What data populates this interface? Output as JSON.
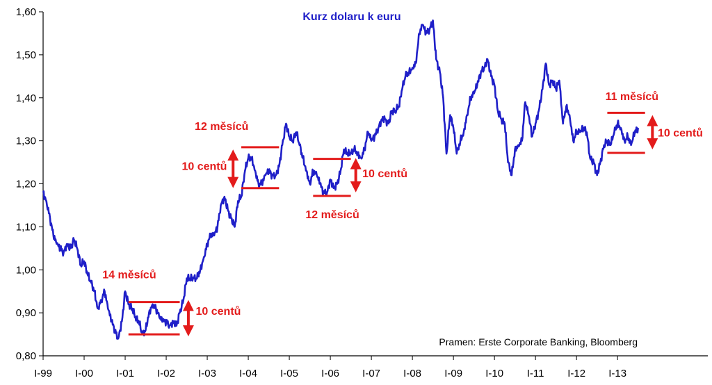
{
  "chart_data": {
    "type": "line",
    "title": "Kurz dolaru k euru",
    "source": "Pramen: Erste Corporate Banking, Bloomberg",
    "ylim": [
      0.8,
      1.6
    ],
    "xlim": [
      1999.0,
      2013.7
    ],
    "grid": false,
    "y_ticks": [
      {
        "value": 0.8,
        "label": "0,80"
      },
      {
        "value": 0.9,
        "label": "0,90"
      },
      {
        "value": 1.0,
        "label": "1,00"
      },
      {
        "value": 1.1,
        "label": "1,10"
      },
      {
        "value": 1.2,
        "label": "1,20"
      },
      {
        "value": 1.3,
        "label": "1,30"
      },
      {
        "value": 1.4,
        "label": "1,40"
      },
      {
        "value": 1.5,
        "label": "1,50"
      },
      {
        "value": 1.6,
        "label": "1,60"
      }
    ],
    "x_ticks": [
      {
        "value": 1999,
        "label": "I-99"
      },
      {
        "value": 2000,
        "label": "I-00"
      },
      {
        "value": 2001,
        "label": "I-01"
      },
      {
        "value": 2002,
        "label": "I-02"
      },
      {
        "value": 2003,
        "label": "I-03"
      },
      {
        "value": 2004,
        "label": "I-04"
      },
      {
        "value": 2005,
        "label": "I-05"
      },
      {
        "value": 2006,
        "label": "I-06"
      },
      {
        "value": 2007,
        "label": "I-07"
      },
      {
        "value": 2008,
        "label": "I-08"
      },
      {
        "value": 2009,
        "label": "I-09"
      },
      {
        "value": 2010,
        "label": "I-10"
      },
      {
        "value": 2011,
        "label": "I-11"
      },
      {
        "value": 2012,
        "label": "I-12"
      },
      {
        "value": 2013,
        "label": "I-13"
      }
    ],
    "series": [
      {
        "color": "#1f1fc8",
        "points": [
          [
            1999.0,
            1.18
          ],
          [
            1999.08,
            1.16
          ],
          [
            1999.17,
            1.12
          ],
          [
            1999.25,
            1.08
          ],
          [
            1999.33,
            1.06
          ],
          [
            1999.42,
            1.05
          ],
          [
            1999.5,
            1.04
          ],
          [
            1999.58,
            1.06
          ],
          [
            1999.67,
            1.05
          ],
          [
            1999.75,
            1.07
          ],
          [
            1999.83,
            1.05
          ],
          [
            1999.92,
            1.01
          ],
          [
            2000.0,
            1.02
          ],
          [
            2000.08,
            0.99
          ],
          [
            2000.17,
            0.97
          ],
          [
            2000.25,
            0.95
          ],
          [
            2000.33,
            0.91
          ],
          [
            2000.42,
            0.93
          ],
          [
            2000.5,
            0.95
          ],
          [
            2000.58,
            0.91
          ],
          [
            2000.67,
            0.88
          ],
          [
            2000.75,
            0.86
          ],
          [
            2000.83,
            0.84
          ],
          [
            2000.92,
            0.88
          ],
          [
            2001.0,
            0.95
          ],
          [
            2001.08,
            0.92
          ],
          [
            2001.17,
            0.91
          ],
          [
            2001.25,
            0.89
          ],
          [
            2001.33,
            0.88
          ],
          [
            2001.42,
            0.85
          ],
          [
            2001.5,
            0.86
          ],
          [
            2001.58,
            0.9
          ],
          [
            2001.67,
            0.92
          ],
          [
            2001.75,
            0.91
          ],
          [
            2001.83,
            0.89
          ],
          [
            2001.92,
            0.88
          ],
          [
            2002.0,
            0.88
          ],
          [
            2002.08,
            0.87
          ],
          [
            2002.17,
            0.88
          ],
          [
            2002.25,
            0.87
          ],
          [
            2002.33,
            0.9
          ],
          [
            2002.42,
            0.93
          ],
          [
            2002.5,
            0.98
          ],
          [
            2002.58,
            0.98
          ],
          [
            2002.67,
            0.98
          ],
          [
            2002.75,
            0.98
          ],
          [
            2002.83,
            1.0
          ],
          [
            2002.92,
            1.03
          ],
          [
            2003.0,
            1.06
          ],
          [
            2003.08,
            1.08
          ],
          [
            2003.17,
            1.08
          ],
          [
            2003.25,
            1.1
          ],
          [
            2003.33,
            1.15
          ],
          [
            2003.42,
            1.17
          ],
          [
            2003.5,
            1.14
          ],
          [
            2003.58,
            1.12
          ],
          [
            2003.67,
            1.1
          ],
          [
            2003.75,
            1.16
          ],
          [
            2003.83,
            1.17
          ],
          [
            2003.92,
            1.23
          ],
          [
            2004.0,
            1.26
          ],
          [
            2004.08,
            1.26
          ],
          [
            2004.17,
            1.23
          ],
          [
            2004.25,
            1.2
          ],
          [
            2004.33,
            1.2
          ],
          [
            2004.42,
            1.22
          ],
          [
            2004.5,
            1.23
          ],
          [
            2004.58,
            1.22
          ],
          [
            2004.67,
            1.22
          ],
          [
            2004.75,
            1.24
          ],
          [
            2004.83,
            1.29
          ],
          [
            2004.92,
            1.34
          ],
          [
            2005.0,
            1.31
          ],
          [
            2005.08,
            1.3
          ],
          [
            2005.17,
            1.32
          ],
          [
            2005.25,
            1.29
          ],
          [
            2005.33,
            1.26
          ],
          [
            2005.42,
            1.23
          ],
          [
            2005.5,
            1.2
          ],
          [
            2005.58,
            1.23
          ],
          [
            2005.67,
            1.22
          ],
          [
            2005.75,
            1.2
          ],
          [
            2005.83,
            1.18
          ],
          [
            2005.92,
            1.18
          ],
          [
            2006.0,
            1.21
          ],
          [
            2006.08,
            1.19
          ],
          [
            2006.17,
            1.2
          ],
          [
            2006.25,
            1.23
          ],
          [
            2006.33,
            1.28
          ],
          [
            2006.42,
            1.27
          ],
          [
            2006.5,
            1.27
          ],
          [
            2006.58,
            1.28
          ],
          [
            2006.67,
            1.27
          ],
          [
            2006.75,
            1.26
          ],
          [
            2006.83,
            1.28
          ],
          [
            2006.92,
            1.32
          ],
          [
            2007.0,
            1.3
          ],
          [
            2007.08,
            1.31
          ],
          [
            2007.17,
            1.33
          ],
          [
            2007.25,
            1.35
          ],
          [
            2007.33,
            1.35
          ],
          [
            2007.42,
            1.34
          ],
          [
            2007.5,
            1.37
          ],
          [
            2007.58,
            1.37
          ],
          [
            2007.67,
            1.38
          ],
          [
            2007.75,
            1.42
          ],
          [
            2007.83,
            1.45
          ],
          [
            2007.92,
            1.46
          ],
          [
            2008.0,
            1.47
          ],
          [
            2008.08,
            1.48
          ],
          [
            2008.17,
            1.55
          ],
          [
            2008.25,
            1.57
          ],
          [
            2008.33,
            1.55
          ],
          [
            2008.42,
            1.56
          ],
          [
            2008.5,
            1.58
          ],
          [
            2008.58,
            1.49
          ],
          [
            2008.67,
            1.46
          ],
          [
            2008.75,
            1.4
          ],
          [
            2008.83,
            1.27
          ],
          [
            2008.92,
            1.36
          ],
          [
            2009.0,
            1.33
          ],
          [
            2009.08,
            1.27
          ],
          [
            2009.17,
            1.3
          ],
          [
            2009.25,
            1.32
          ],
          [
            2009.33,
            1.36
          ],
          [
            2009.42,
            1.4
          ],
          [
            2009.5,
            1.41
          ],
          [
            2009.58,
            1.43
          ],
          [
            2009.67,
            1.46
          ],
          [
            2009.75,
            1.47
          ],
          [
            2009.83,
            1.49
          ],
          [
            2009.92,
            1.45
          ],
          [
            2010.0,
            1.43
          ],
          [
            2010.08,
            1.37
          ],
          [
            2010.17,
            1.35
          ],
          [
            2010.25,
            1.34
          ],
          [
            2010.33,
            1.25
          ],
          [
            2010.42,
            1.22
          ],
          [
            2010.5,
            1.28
          ],
          [
            2010.58,
            1.29
          ],
          [
            2010.67,
            1.3
          ],
          [
            2010.75,
            1.39
          ],
          [
            2010.83,
            1.36
          ],
          [
            2010.92,
            1.31
          ],
          [
            2011.0,
            1.34
          ],
          [
            2011.08,
            1.37
          ],
          [
            2011.17,
            1.42
          ],
          [
            2011.25,
            1.48
          ],
          [
            2011.33,
            1.43
          ],
          [
            2011.42,
            1.44
          ],
          [
            2011.5,
            1.42
          ],
          [
            2011.58,
            1.44
          ],
          [
            2011.67,
            1.34
          ],
          [
            2011.75,
            1.38
          ],
          [
            2011.83,
            1.36
          ],
          [
            2011.92,
            1.3
          ],
          [
            2012.0,
            1.32
          ],
          [
            2012.08,
            1.32
          ],
          [
            2012.17,
            1.33
          ],
          [
            2012.25,
            1.32
          ],
          [
            2012.33,
            1.26
          ],
          [
            2012.42,
            1.25
          ],
          [
            2012.5,
            1.22
          ],
          [
            2012.58,
            1.25
          ],
          [
            2012.67,
            1.29
          ],
          [
            2012.75,
            1.3
          ],
          [
            2012.83,
            1.29
          ],
          [
            2012.92,
            1.32
          ],
          [
            2013.0,
            1.34
          ],
          [
            2013.08,
            1.33
          ],
          [
            2013.17,
            1.3
          ],
          [
            2013.25,
            1.31
          ],
          [
            2013.33,
            1.29
          ],
          [
            2013.42,
            1.32
          ],
          [
            2013.5,
            1.33
          ]
        ]
      }
    ],
    "annotations": {
      "color": "#e31b1b",
      "hlines": [
        {
          "x0": 2001.08,
          "x2": 2002.33,
          "y": 0.925
        },
        {
          "x0": 2001.08,
          "x2": 2002.33,
          "y": 0.85
        },
        {
          "x0": 2003.83,
          "x2": 2004.75,
          "y": 1.285
        },
        {
          "x0": 2003.83,
          "x2": 2004.75,
          "y": 1.19
        },
        {
          "x0": 2005.58,
          "x2": 2006.5,
          "y": 1.258
        },
        {
          "x0": 2005.58,
          "x2": 2006.5,
          "y": 1.172
        },
        {
          "x0": 2012.75,
          "x2": 2013.67,
          "y": 1.365
        },
        {
          "x0": 2012.75,
          "x2": 2013.67,
          "y": 1.272
        }
      ],
      "arrows": [
        {
          "x": 2002.54,
          "y0": 0.85,
          "y1": 0.925
        },
        {
          "x": 2003.63,
          "y0": 1.195,
          "y1": 1.275
        },
        {
          "x": 2006.62,
          "y0": 1.185,
          "y1": 1.255
        },
        {
          "x": 2013.85,
          "y0": 1.285,
          "y1": 1.355
        }
      ],
      "labels": [
        {
          "text": "14 měsíců",
          "x": 2001.1,
          "y": 0.98,
          "anchor": "middle"
        },
        {
          "text": "10 centů",
          "x": 2002.72,
          "y": 0.895,
          "anchor": "start"
        },
        {
          "text": "12 měsíců",
          "x": 2003.35,
          "y": 1.325,
          "anchor": "middle"
        },
        {
          "text": "10 centů",
          "x": 2003.48,
          "y": 1.232,
          "anchor": "end"
        },
        {
          "text": "10 centů",
          "x": 2006.78,
          "y": 1.215,
          "anchor": "start"
        },
        {
          "text": "12 měsíců",
          "x": 2006.05,
          "y": 1.12,
          "anchor": "middle"
        },
        {
          "text": "11 měsíců",
          "x": 2013.35,
          "y": 1.395,
          "anchor": "middle"
        },
        {
          "text": "10 centů",
          "x": 2013.98,
          "y": 1.31,
          "anchor": "start"
        }
      ]
    }
  }
}
